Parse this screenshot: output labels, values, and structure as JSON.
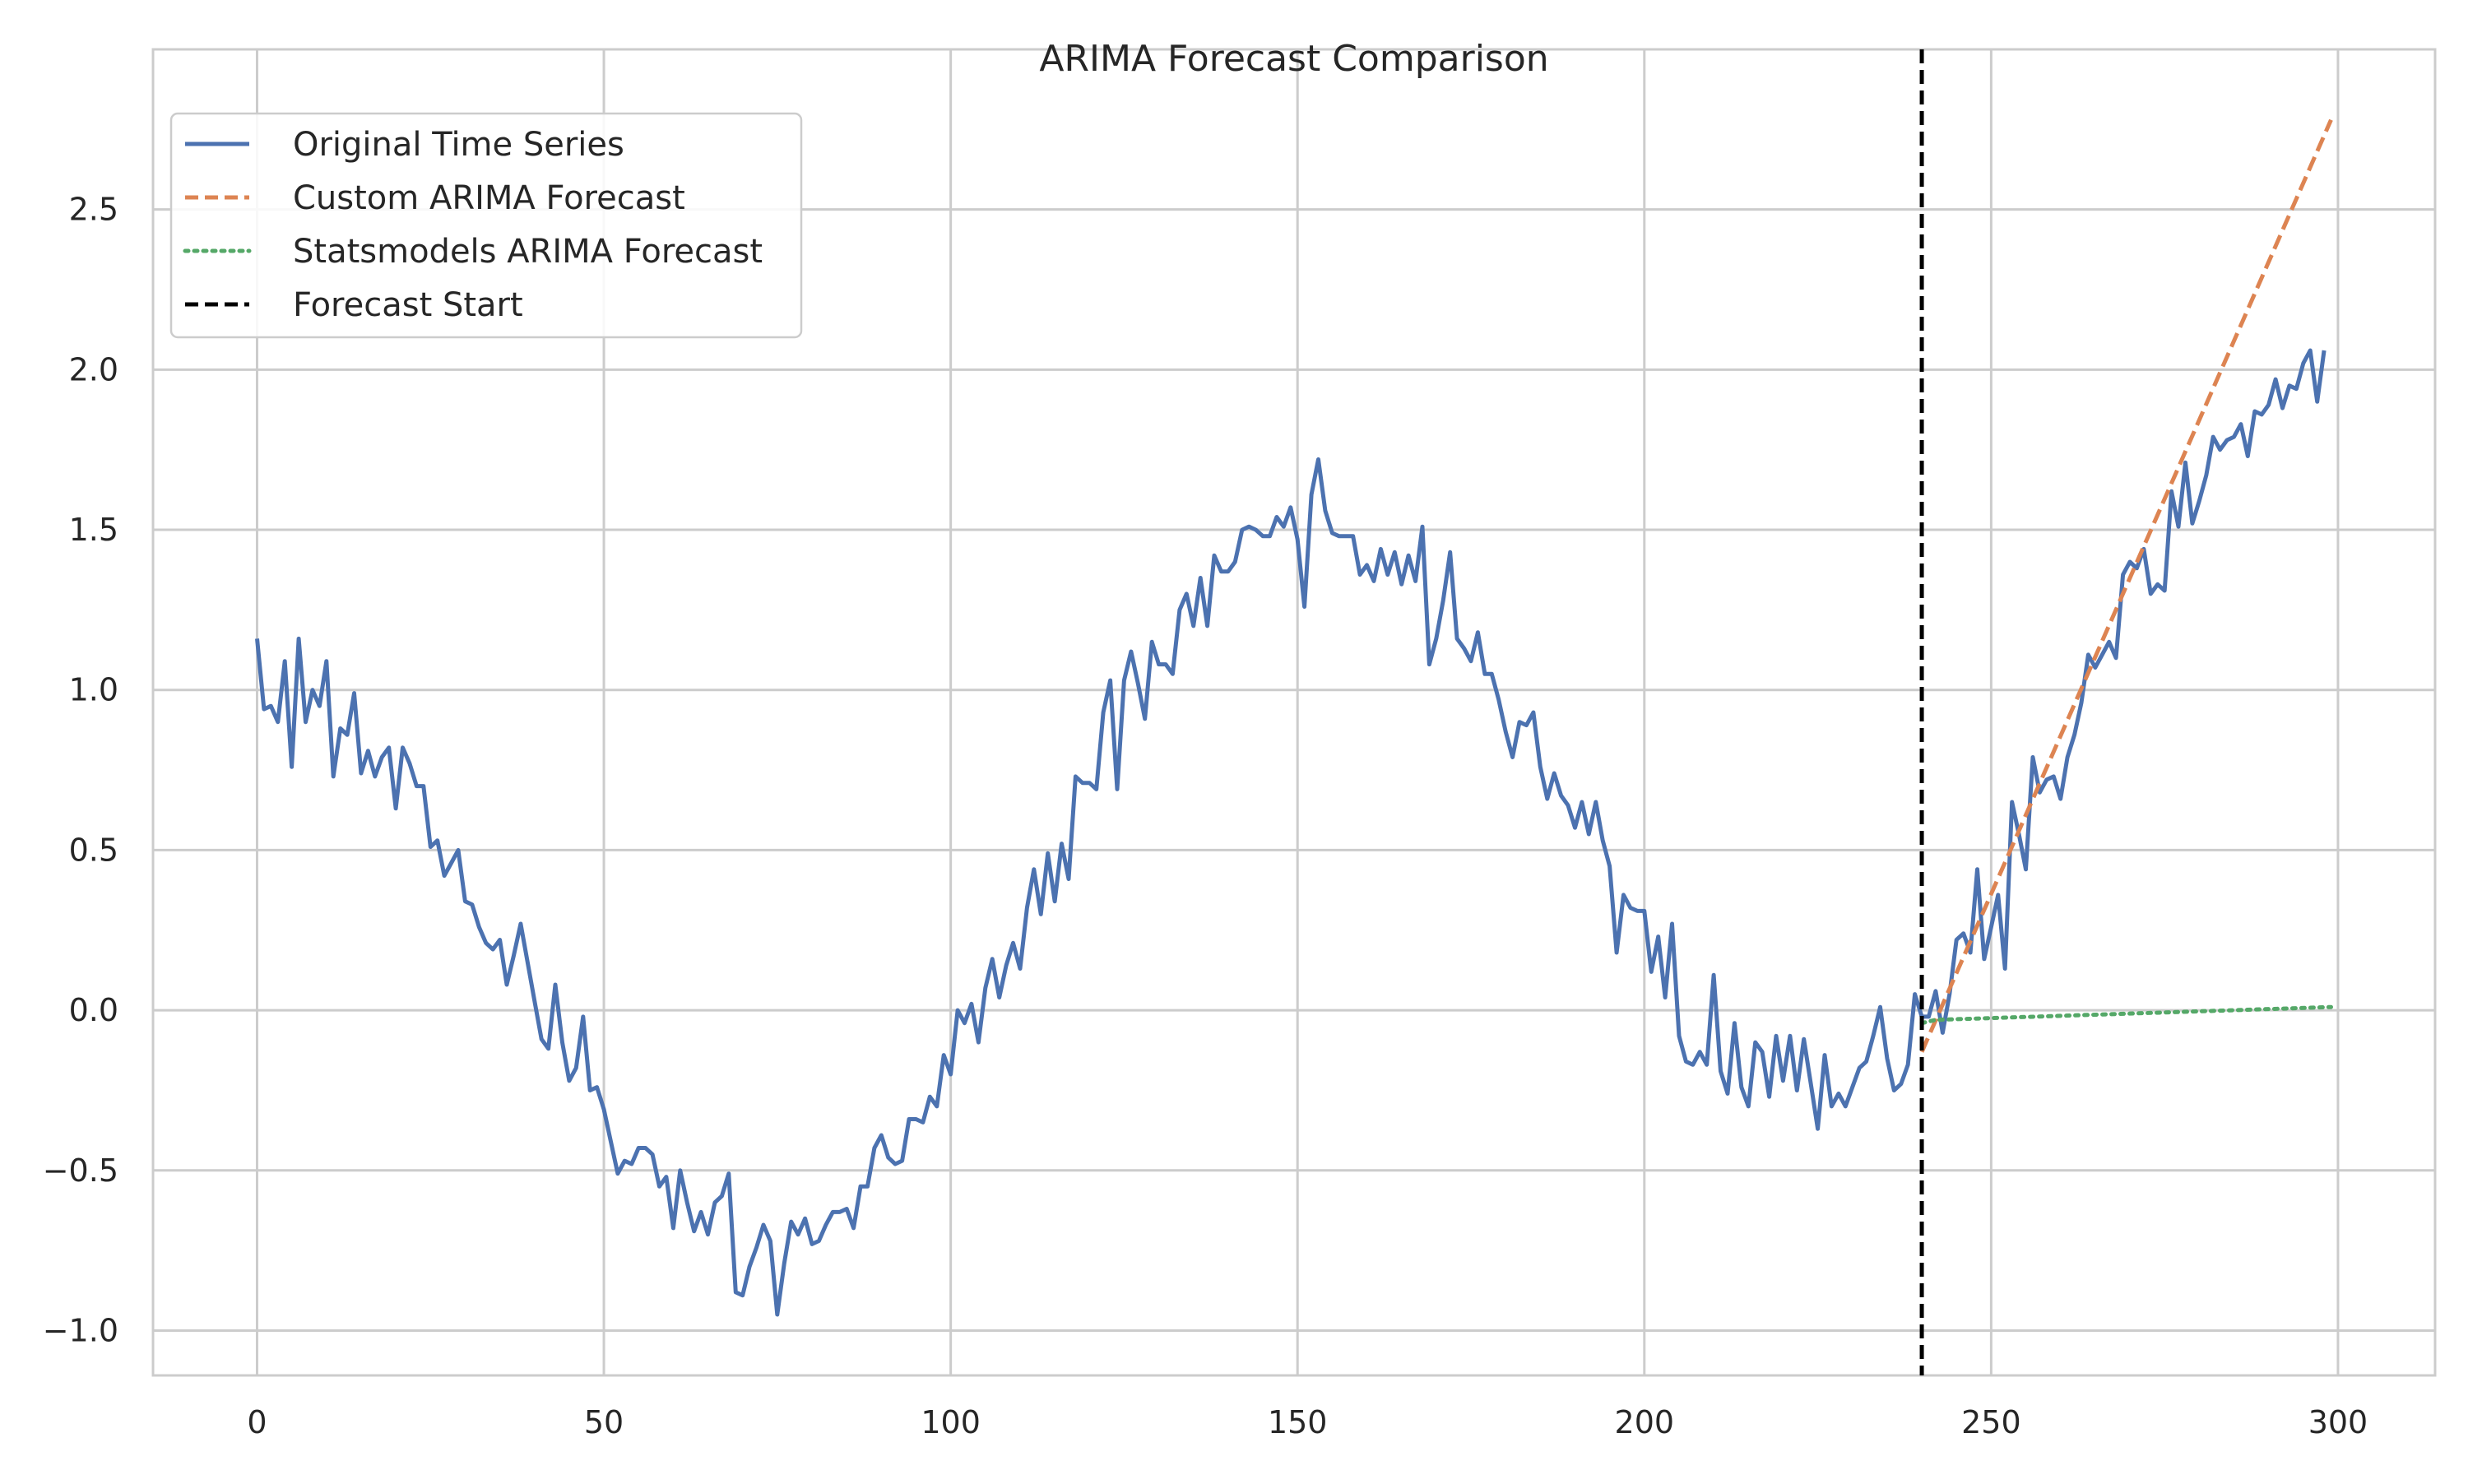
{
  "chart_data": {
    "type": "line",
    "title": "ARIMA Forecast Comparison",
    "xlabel": "",
    "ylabel": "",
    "xlim": [
      -15,
      314
    ],
    "ylim": [
      -1.14,
      3.0
    ],
    "x_ticks": [
      0,
      50,
      100,
      150,
      200,
      250,
      300
    ],
    "y_ticks": [
      -1.0,
      -0.5,
      0.0,
      0.5,
      1.0,
      1.5,
      2.0,
      2.5
    ],
    "x_tick_labels": [
      "0",
      "50",
      "100",
      "150",
      "200",
      "250",
      "300"
    ],
    "y_tick_labels": [
      "−1.0",
      "−0.5",
      "0.0",
      "0.5",
      "1.0",
      "1.5",
      "2.0",
      "2.5"
    ],
    "grid": true,
    "legend_position": "top-left",
    "series": [
      {
        "name": "Original Time Series",
        "style": "solid",
        "color": "#4c72b0",
        "x_start": 0,
        "x_step": 1,
        "values": [
          1.16,
          0.94,
          0.95,
          0.9,
          1.09,
          0.76,
          1.16,
          0.9,
          1.0,
          0.95,
          1.09,
          0.73,
          0.88,
          0.86,
          0.99,
          0.74,
          0.81,
          0.73,
          0.79,
          0.82,
          0.63,
          0.82,
          0.77,
          0.7,
          0.7,
          0.51,
          0.53,
          0.42,
          0.46,
          0.5,
          0.34,
          0.33,
          0.26,
          0.21,
          0.19,
          0.22,
          0.08,
          0.17,
          0.27,
          0.15,
          0.03,
          -0.09,
          -0.12,
          0.08,
          -0.1,
          -0.22,
          -0.18,
          -0.02,
          -0.25,
          -0.24,
          -0.31,
          -0.41,
          -0.51,
          -0.47,
          -0.48,
          -0.43,
          -0.43,
          -0.45,
          -0.55,
          -0.52,
          -0.68,
          -0.5,
          -0.6,
          -0.69,
          -0.63,
          -0.7,
          -0.6,
          -0.58,
          -0.51,
          -0.88,
          -0.89,
          -0.8,
          -0.74,
          -0.67,
          -0.72,
          -0.95,
          -0.79,
          -0.66,
          -0.7,
          -0.65,
          -0.73,
          -0.72,
          -0.67,
          -0.63,
          -0.63,
          -0.62,
          -0.68,
          -0.55,
          -0.55,
          -0.43,
          -0.39,
          -0.46,
          -0.48,
          -0.47,
          -0.34,
          -0.34,
          -0.35,
          -0.27,
          -0.3,
          -0.14,
          -0.2,
          -0.0,
          -0.04,
          0.02,
          -0.1,
          0.07,
          0.16,
          0.04,
          0.14,
          0.21,
          0.13,
          0.32,
          0.44,
          0.3,
          0.49,
          0.34,
          0.52,
          0.41,
          0.73,
          0.71,
          0.71,
          0.69,
          0.93,
          1.03,
          0.69,
          1.03,
          1.12,
          1.02,
          0.91,
          1.15,
          1.08,
          1.08,
          1.05,
          1.25,
          1.3,
          1.2,
          1.35,
          1.2,
          1.42,
          1.37,
          1.37,
          1.4,
          1.5,
          1.51,
          1.5,
          1.48,
          1.48,
          1.54,
          1.51,
          1.57,
          1.47,
          1.26,
          1.61,
          1.72,
          1.56,
          1.49,
          1.48,
          1.48,
          1.48,
          1.36,
          1.39,
          1.34,
          1.44,
          1.36,
          1.43,
          1.33,
          1.42,
          1.34,
          1.51,
          1.08,
          1.16,
          1.28,
          1.43,
          1.16,
          1.13,
          1.09,
          1.18,
          1.05,
          1.05,
          0.97,
          0.87,
          0.79,
          0.9,
          0.89,
          0.93,
          0.76,
          0.66,
          0.74,
          0.67,
          0.64,
          0.57,
          0.65,
          0.55,
          0.65,
          0.53,
          0.45,
          0.18,
          0.36,
          0.32,
          0.31,
          0.31,
          0.12,
          0.23,
          0.04,
          0.27,
          -0.08,
          -0.16,
          -0.17,
          -0.13,
          -0.17,
          0.11,
          -0.19,
          -0.26,
          -0.04,
          -0.24,
          -0.3,
          -0.1,
          -0.13,
          -0.27,
          -0.08,
          -0.22,
          -0.08,
          -0.25,
          -0.09,
          -0.23,
          -0.37,
          -0.14,
          -0.3,
          -0.26,
          -0.3,
          -0.24,
          -0.18,
          -0.16,
          -0.08,
          0.01,
          -0.15,
          -0.25,
          -0.23,
          -0.17,
          0.05,
          -0.02,
          -0.02,
          0.06,
          -0.07,
          0.05,
          0.22,
          0.24,
          0.18,
          0.44,
          0.16,
          0.26,
          0.36,
          0.13,
          0.65,
          0.55,
          0.44,
          0.79,
          0.68,
          0.72,
          0.73,
          0.66,
          0.79,
          0.86,
          0.96,
          1.11,
          1.07,
          1.11,
          1.15,
          1.1,
          1.36,
          1.4,
          1.38,
          1.44,
          1.3,
          1.33,
          1.31,
          1.62,
          1.51,
          1.71,
          1.52,
          1.59,
          1.67,
          1.79,
          1.75,
          1.78,
          1.79,
          1.83,
          1.73,
          1.87,
          1.86,
          1.89,
          1.97,
          1.88,
          1.95,
          1.94,
          2.02,
          2.06,
          1.9,
          2.06
        ]
      },
      {
        "name": "Custom ARIMA Forecast",
        "style": "dashed",
        "color": "#dd8452",
        "x": [
          240,
          299
        ],
        "values": [
          -0.13,
          2.78
        ]
      },
      {
        "name": "Statsmodels ARIMA Forecast",
        "style": "dotted",
        "color": "#55a868",
        "x": [
          240,
          242,
          299
        ],
        "values": [
          -0.04,
          -0.03,
          0.01
        ]
      },
      {
        "name": "Forecast Start",
        "style": "dashed",
        "color": "#000000",
        "vertical_line_x": 240
      }
    ]
  }
}
